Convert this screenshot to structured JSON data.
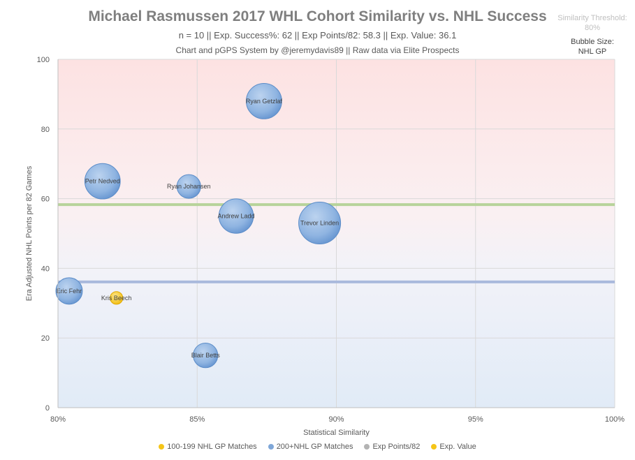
{
  "chart_data": {
    "type": "scatter",
    "title": "Michael Rasmussen 2017 WHL Cohort Similarity vs. NHL Success",
    "subtitle": "n = 10 || Exp. Success%: 62 || Exp Points/82: 58.3 || Exp. Value: 36.1",
    "credit": "Chart and pGPS System by @jeremydavis89 || Raw data via Elite Prospects",
    "threshold_note_1": "Similarity Threshold:",
    "threshold_note_2": "80%",
    "bubble_note_1": "Bubble Size:",
    "bubble_note_2": "NHL GP",
    "xlabel": "Statistical Similarity",
    "ylabel": "Era Adjusted NHL Points per 82 Games",
    "xlim": [
      80,
      100
    ],
    "ylim": [
      0,
      100
    ],
    "x_ticks": [
      80,
      85,
      90,
      95,
      100
    ],
    "x_tick_labels": [
      "80%",
      "85%",
      "90%",
      "95%",
      "100%"
    ],
    "y_ticks": [
      0,
      20,
      40,
      60,
      80,
      100
    ],
    "y_tick_labels": [
      "0",
      "20",
      "40",
      "60",
      "80",
      "100"
    ],
    "grid": true,
    "legend_position": "bottom",
    "legend": [
      {
        "label": "100-199 NHL GP Matches",
        "color": "#f5c518"
      },
      {
        "label": "200+NHL GP Matches",
        "color": "#7fa7d8"
      },
      {
        "label": "Exp Points/82",
        "color": "#b3b3b3"
      },
      {
        "label": "Exp. Value",
        "color": "#f5c518"
      }
    ],
    "series": [
      {
        "name": "100-199 NHL GP Matches",
        "color": "#f5c518",
        "points": [
          {
            "label": "Kris Beech",
            "x": 82.1,
            "y": 31.5,
            "size": 130
          }
        ]
      },
      {
        "name": "200+NHL GP Matches",
        "color": "#7fa7d8",
        "points": [
          {
            "label": "Ryan Getzlaf",
            "x": 87.4,
            "y": 88,
            "size": 1000
          },
          {
            "label": "Petr Nedved",
            "x": 81.6,
            "y": 65,
            "size": 1000
          },
          {
            "label": "Ryan Johansen",
            "x": 84.7,
            "y": 63.5,
            "size": 450
          },
          {
            "label": "Andrew Ladd",
            "x": 86.4,
            "y": 55,
            "size": 950
          },
          {
            "label": "Trevor Linden",
            "x": 89.4,
            "y": 53,
            "size": 1400
          },
          {
            "label": "Eric Fehr",
            "x": 80.4,
            "y": 33.5,
            "size": 560
          },
          {
            "label": "Blair Betts",
            "x": 85.3,
            "y": 15,
            "size": 480
          }
        ]
      }
    ],
    "reference_lines": [
      {
        "name": "Exp Points/82",
        "y": 58.3,
        "color": "#b7d39a"
      },
      {
        "name": "Exp. Value",
        "y": 36.1,
        "color": "#a9b9dc"
      }
    ]
  }
}
